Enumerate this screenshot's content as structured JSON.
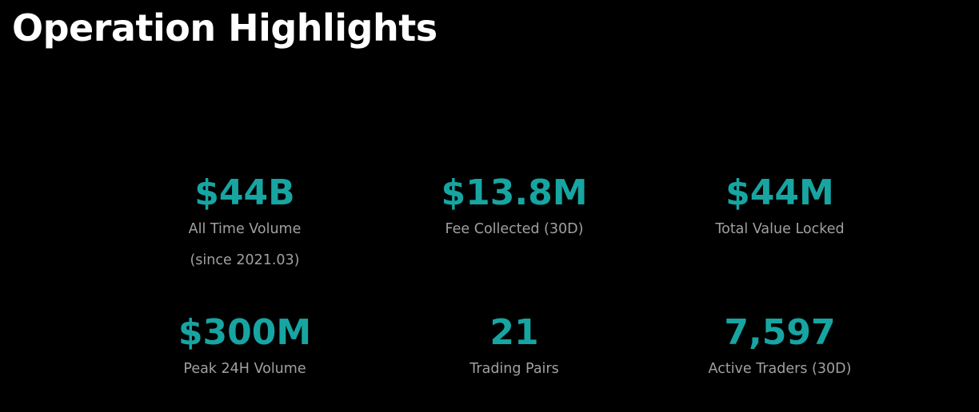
{
  "title": "Operation Highlights",
  "stats": [
    {
      "value": "$44B",
      "label": "All Time Volume",
      "note": "(since 2021.03)"
    },
    {
      "value": "$13.8M",
      "label": "Fee Collected (30D)"
    },
    {
      "value": "$44M",
      "label": "Total Value Locked"
    },
    {
      "value": "$300M",
      "label": "Peak 24H Volume"
    },
    {
      "value": "21",
      "label": "Trading Pairs"
    },
    {
      "value": "7,597",
      "label": "Active Traders (30D)"
    }
  ]
}
